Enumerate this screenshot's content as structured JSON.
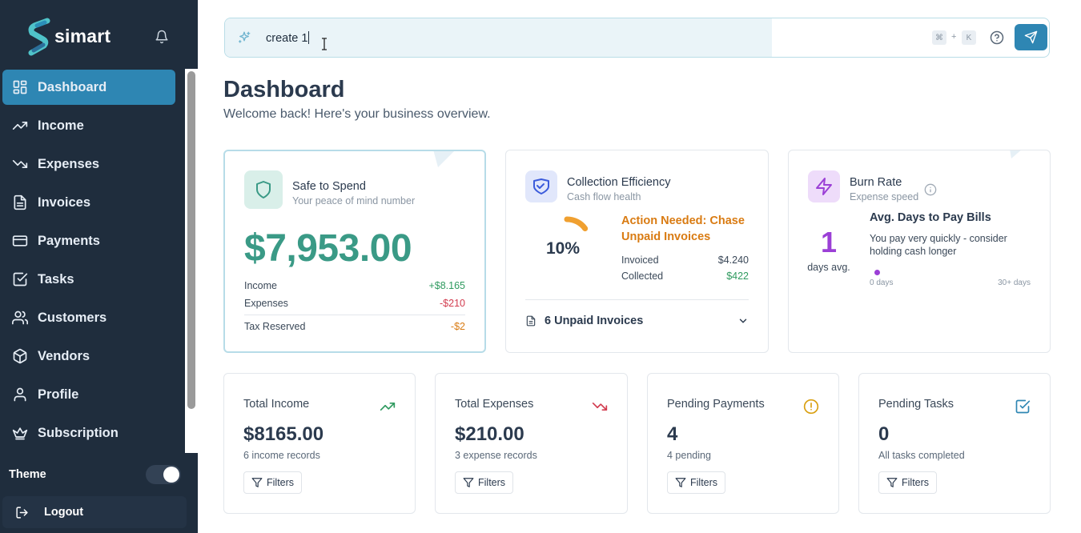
{
  "brand": {
    "name": "simart"
  },
  "sidebar": {
    "items": [
      {
        "label": "Dashboard",
        "icon": "dashboard-icon",
        "active": true
      },
      {
        "label": "Income",
        "icon": "trending-up-icon"
      },
      {
        "label": "Expenses",
        "icon": "trending-down-icon"
      },
      {
        "label": "Invoices",
        "icon": "file-text-icon"
      },
      {
        "label": "Payments",
        "icon": "credit-card-icon"
      },
      {
        "label": "Tasks",
        "icon": "check-square-icon"
      },
      {
        "label": "Customers",
        "icon": "users-icon"
      },
      {
        "label": "Vendors",
        "icon": "package-icon"
      },
      {
        "label": "Profile",
        "icon": "user-icon"
      },
      {
        "label": "Subscription",
        "icon": "crown-icon"
      }
    ],
    "theme_label": "Theme",
    "theme_on": true,
    "logout_label": "Logout"
  },
  "search": {
    "value": "create 1",
    "shortcut_key1": "⌘",
    "shortcut_plus": "+",
    "shortcut_key2": "K"
  },
  "page": {
    "title": "Dashboard",
    "subtitle": "Welcome back! Here's your business overview."
  },
  "safe_to_spend": {
    "title": "Safe to Spend",
    "subtitle": "Your peace of mind number",
    "amount": "$7,953.00",
    "rows": [
      {
        "label": "Income",
        "value": "+$8.165"
      },
      {
        "label": "Expenses",
        "value": "-$210"
      },
      {
        "label": "Tax Reserved",
        "value": "-$2"
      }
    ],
    "colors": {
      "amount": "#3a9a86",
      "income": "#2f9a5f",
      "expenses": "#d23c4f",
      "tax": "#d97b12"
    }
  },
  "collection": {
    "title": "Collection Efficiency",
    "subtitle": "Cash flow health",
    "percent_label": "10%",
    "percent_value": 10,
    "alert": "Action Needed: Chase Unpaid Invoices",
    "invoiced_label": "Invoiced",
    "invoiced_value": "$4.240",
    "collected_label": "Collected",
    "collected_value": "$422",
    "unpaid_label": "6 Unpaid Invoices",
    "colors": {
      "alert": "#d97b12",
      "gauge": "#f0a030",
      "collected": "#2f9a5f"
    }
  },
  "burn_rate": {
    "title": "Burn Rate",
    "subtitle": "Expense speed",
    "days": "1",
    "days_label": "days avg.",
    "heading": "Avg. Days to Pay Bills",
    "description": "You pay very quickly - consider holding cash longer",
    "scale_min": "0 days",
    "scale_max": "30+ days",
    "position_fraction": 0.03,
    "colors": {
      "accent": "#9b3fd6"
    }
  },
  "stats": [
    {
      "title": "Total Income",
      "value": "$8165.00",
      "note": "6 income records",
      "filters_label": "Filters",
      "icon": "trending-up-icon",
      "color": "#2f9a5f"
    },
    {
      "title": "Total Expenses",
      "value": "$210.00",
      "note": "3 expense records",
      "filters_label": "Filters",
      "icon": "trending-down-icon",
      "color": "#d23c4f"
    },
    {
      "title": "Pending Payments",
      "value": "4",
      "note": "4 pending",
      "filters_label": "Filters",
      "icon": "alert-circle-icon",
      "color": "#d9a012"
    },
    {
      "title": "Pending Tasks",
      "value": "0",
      "note": "All tasks completed",
      "filters_label": "Filters",
      "icon": "check-square-icon",
      "color": "#2e86b3"
    }
  ]
}
